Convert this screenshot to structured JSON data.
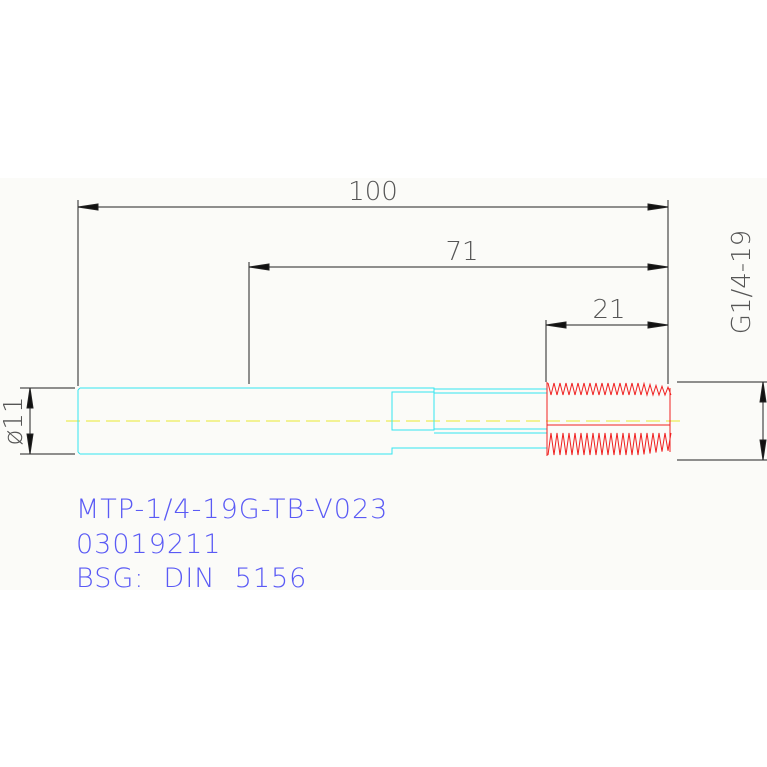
{
  "drawing": {
    "dimensions": {
      "overall_length": "100",
      "length_71": "71",
      "thread_length": "21",
      "shank_diameter": "ø11",
      "thread_spec": "G1/4-19"
    },
    "title_block": {
      "part_number": "MTP-1/4-19G-TB-V023",
      "article_number": "03019211",
      "standard": "BSG:  DIN  5156"
    },
    "colors": {
      "background": "#fbfbf8",
      "body_outline": "#33e6f0",
      "thread": "#f02020",
      "centerline": "#e8e830",
      "dimension": "#222222",
      "text": "#5a5af5"
    }
  }
}
